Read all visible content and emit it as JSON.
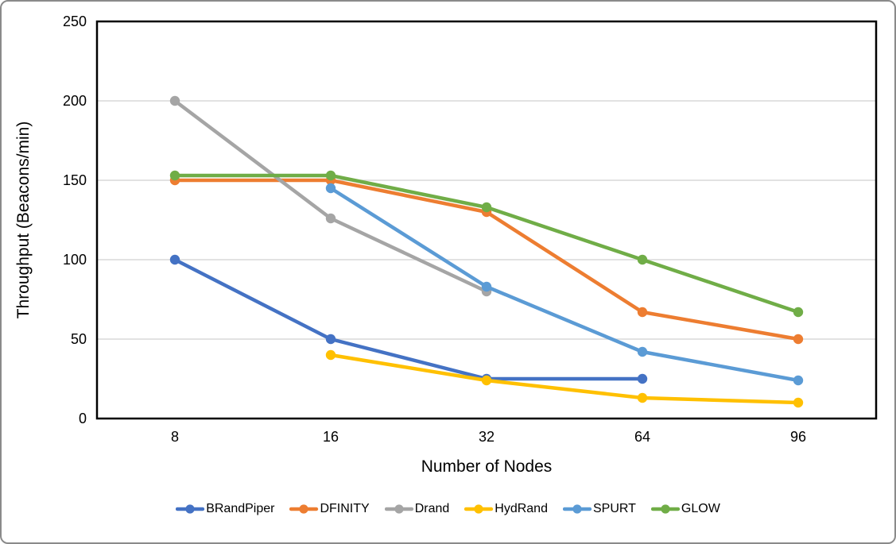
{
  "figure": {
    "background": "#ffffff",
    "border_color": "#8a8a8a"
  },
  "chart_data": {
    "type": "line",
    "title": "",
    "xlabel": "Number of Nodes",
    "ylabel": "Throughput (Beacons/min)",
    "categories": [
      "8",
      "16",
      "32",
      "64",
      "96"
    ],
    "yticks": [
      0,
      50,
      100,
      150,
      200,
      250
    ],
    "ylim": [
      0,
      250
    ],
    "grid": true,
    "legend_position": "bottom",
    "colors": {
      "gridline": "#d9d9d9",
      "axis": "#000000",
      "text": "#000000"
    },
    "series": [
      {
        "name": "BRandPiper",
        "color": "#4472C4",
        "values": [
          100,
          50,
          25,
          25,
          null
        ]
      },
      {
        "name": "DFINITY",
        "color": "#ED7D31",
        "values": [
          150,
          150,
          130,
          67,
          50
        ]
      },
      {
        "name": "Drand",
        "color": "#A5A5A5",
        "values": [
          200,
          126,
          80,
          null,
          null
        ]
      },
      {
        "name": "HydRand",
        "color": "#FFC000",
        "values": [
          null,
          40,
          24,
          13,
          10
        ]
      },
      {
        "name": "SPURT",
        "color": "#5B9BD5",
        "values": [
          null,
          145,
          83,
          42,
          24
        ]
      },
      {
        "name": "GLOW",
        "color": "#70AD47",
        "values": [
          153,
          153,
          133,
          100,
          67
        ]
      }
    ]
  }
}
